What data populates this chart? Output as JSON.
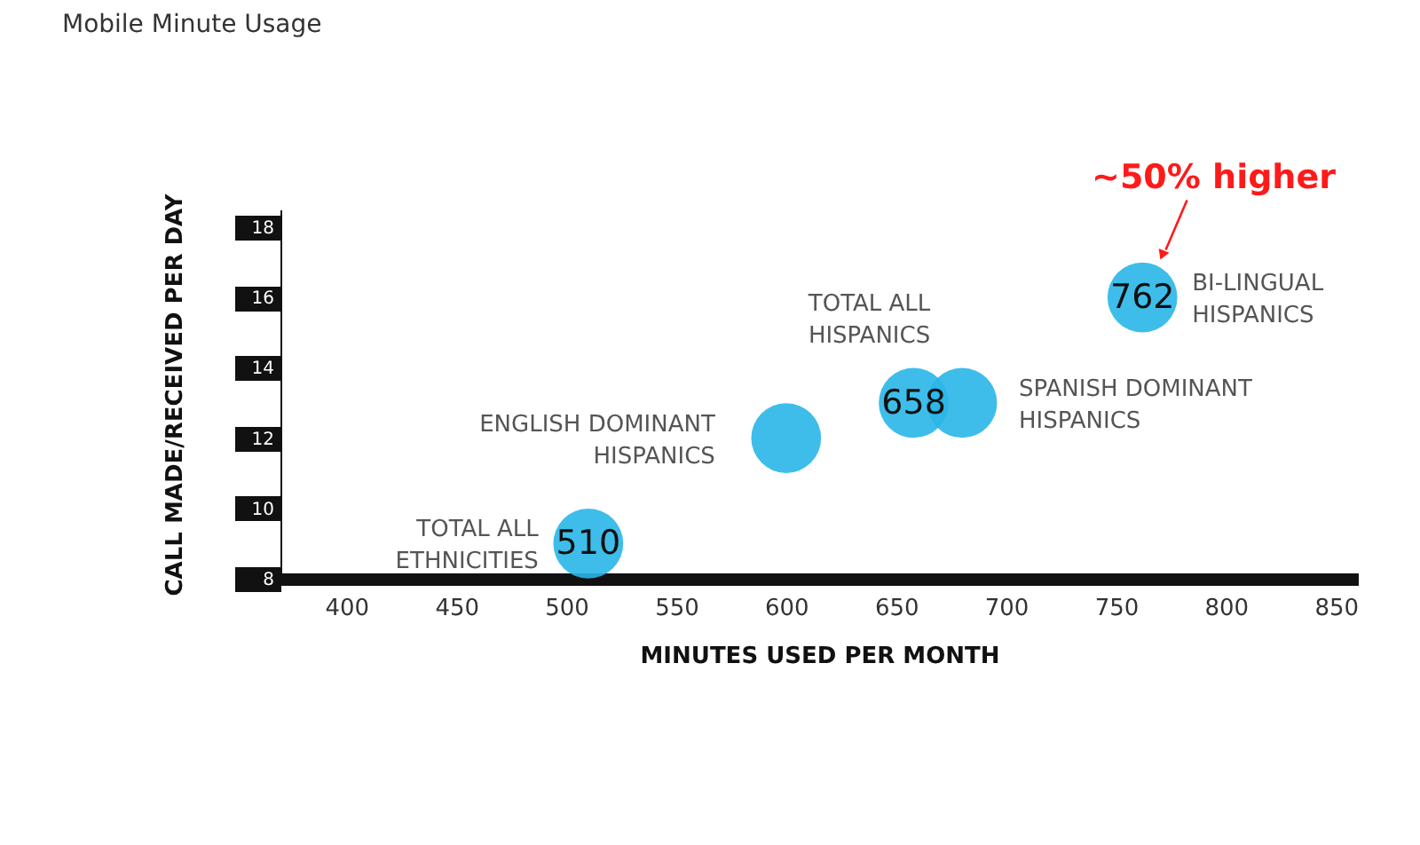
{
  "chart_data": {
    "type": "bubble",
    "title": "Mobile Minute Usage",
    "xlabel": "MINUTES USED PER MONTH",
    "ylabel": "CALL MADE/RECEIVED PER DAY",
    "xlim": [
      370,
      860
    ],
    "xticks": [
      400,
      450,
      500,
      550,
      600,
      650,
      700,
      750,
      800,
      850
    ],
    "ylim": [
      8,
      18.5
    ],
    "yticks": [
      8,
      10,
      12,
      14,
      16,
      18
    ],
    "grid": false,
    "series": [
      {
        "name": "TOTAL ALL ETHNICITIES",
        "color": "#29b6e8",
        "x": [
          510
        ],
        "values": [
          9
        ],
        "sizes": [
          1
        ]
      },
      {
        "name": "ENGLISH DOMINANT HISPANICS",
        "color": "#29b6e8",
        "x": [
          600
        ],
        "values": [
          12
        ],
        "sizes": [
          1
        ]
      },
      {
        "name": "TOTAL ALL HISPANICS",
        "color": "#29b6e8",
        "x": [
          658
        ],
        "values": [
          13
        ],
        "sizes": [
          1
        ]
      },
      {
        "name": "SPANISH DOMINANT HISPANICS",
        "color": "#29b6e8",
        "x": [
          680
        ],
        "values": [
          13
        ],
        "sizes": [
          1
        ]
      },
      {
        "name": "BI-LINGUAL HISPANICS",
        "color": "#29b6e8",
        "x": [
          762
        ],
        "values": [
          16
        ],
        "sizes": [
          1
        ]
      }
    ],
    "annotations": [
      {
        "text": "510",
        "x": 510,
        "y": 9
      },
      {
        "text": "658",
        "x": 658,
        "y": 13
      },
      {
        "text": "762",
        "x": 762,
        "y": 16
      },
      {
        "text": "~50% higher",
        "x": 771,
        "y": 17.2
      }
    ]
  }
}
